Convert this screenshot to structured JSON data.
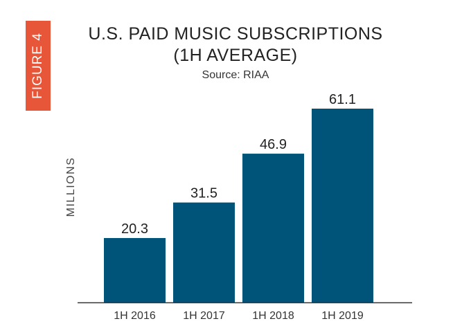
{
  "figure_label": "FIGURE 4",
  "colors": {
    "bar": "#005379",
    "badge": "#e8563a",
    "axis": "#333333"
  },
  "chart_data": {
    "type": "bar",
    "title": "U.S. PAID MUSIC SUBSCRIPTIONS",
    "title_line2": "(1H AVERAGE)",
    "subtitle": "Source: RIAA",
    "xlabel": "",
    "ylabel": "MILLIONS",
    "categories": [
      "1H 2016",
      "1H 2017",
      "1H 2018",
      "1H 2019"
    ],
    "values": [
      20.3,
      31.5,
      46.9,
      61.1
    ],
    "ylim": [
      0,
      61.1
    ],
    "grid": false,
    "legend": "none"
  }
}
